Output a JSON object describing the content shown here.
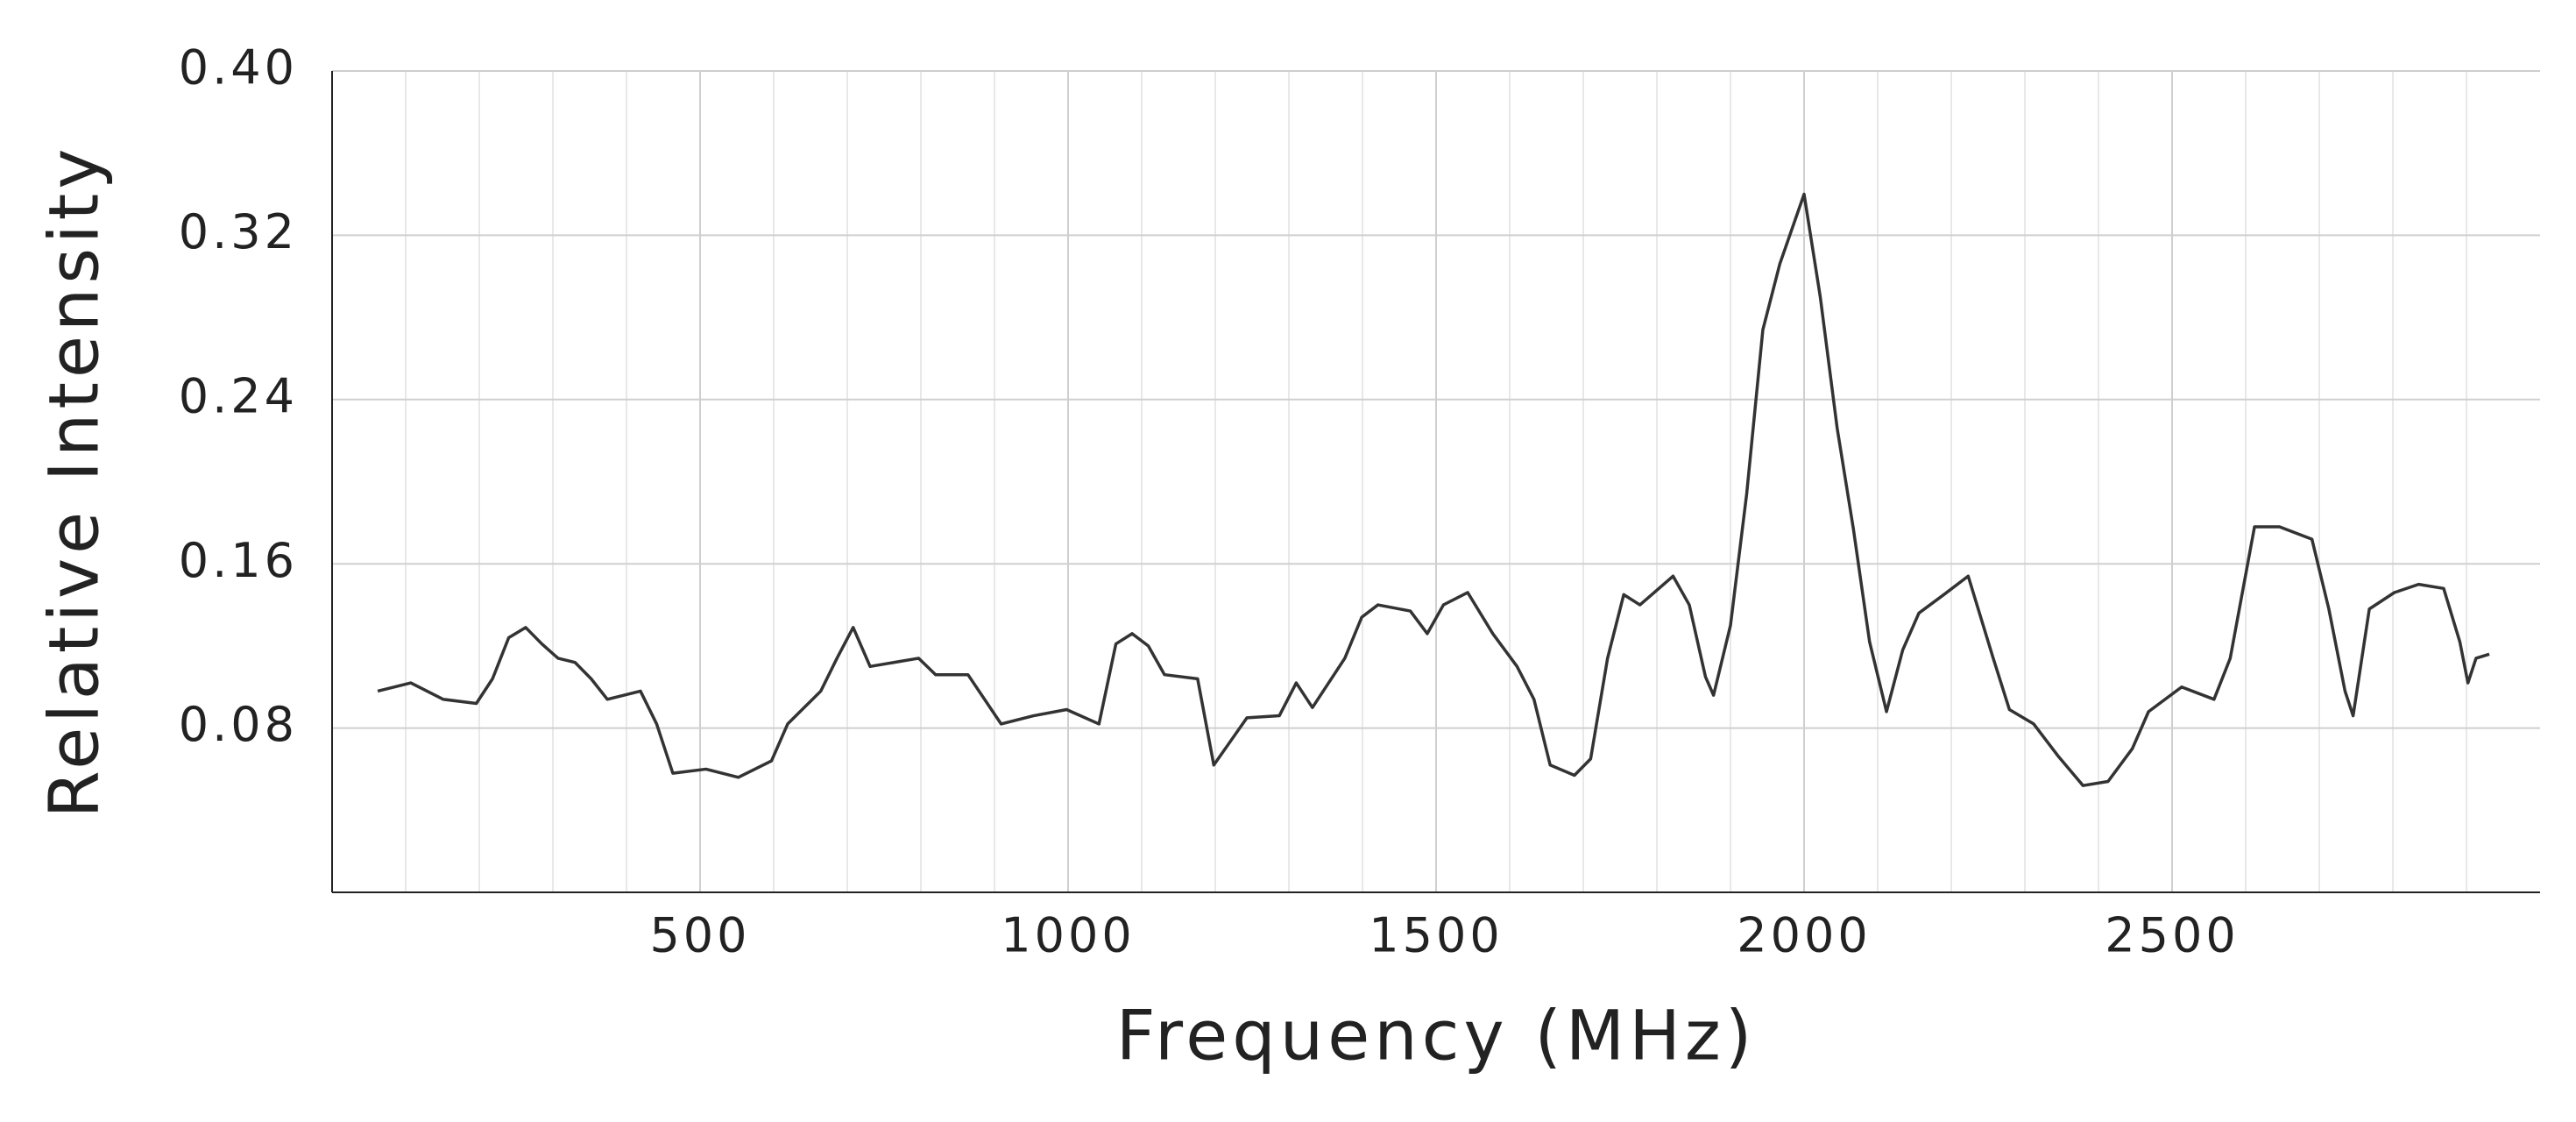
{
  "chart_data": {
    "type": "line",
    "x_label": "Frequency (MHz)",
    "y_label": "Relative Intensity",
    "x": [
      62,
      107,
      151,
      196,
      218,
      240,
      263,
      285,
      307,
      330,
      352,
      374,
      419,
      441,
      463,
      508,
      552,
      597,
      619,
      664,
      686,
      708,
      731,
      797,
      820,
      864,
      909,
      953,
      998,
      1042,
      1065,
      1087,
      1109,
      1131,
      1176,
      1198,
      1243,
      1287,
      1310,
      1332,
      1354,
      1376,
      1399,
      1421,
      1465,
      1488,
      1510,
      1543,
      1577,
      1610,
      1633,
      1655,
      1688,
      1710,
      1733,
      1755,
      1777,
      1822,
      1844,
      1866,
      1877,
      1900,
      1922,
      1944,
      1967,
      2000,
      2022,
      2045,
      2067,
      2089,
      2112,
      2134,
      2156,
      2190,
      2223,
      2257,
      2279,
      2312,
      2346,
      2379,
      2413,
      2446,
      2468,
      2513,
      2557,
      2579,
      2612,
      2646,
      2690,
      2713,
      2735,
      2746,
      2768,
      2802,
      2835,
      2869,
      2891,
      2902,
      2913,
      2931
    ],
    "series": [
      {
        "color": "#333333",
        "values": [
          0.098,
          0.102,
          0.094,
          0.092,
          0.104,
          0.124,
          0.129,
          0.121,
          0.114,
          0.112,
          0.104,
          0.094,
          0.098,
          0.082,
          0.058,
          0.06,
          0.056,
          0.064,
          0.082,
          0.098,
          0.114,
          0.129,
          0.11,
          0.114,
          0.106,
          0.106,
          0.082,
          0.086,
          0.089,
          0.082,
          0.121,
          0.126,
          0.12,
          0.106,
          0.104,
          0.062,
          0.085,
          0.086,
          0.102,
          0.09,
          0.102,
          0.114,
          0.134,
          0.14,
          0.137,
          0.126,
          0.14,
          0.146,
          0.126,
          0.11,
          0.094,
          0.062,
          0.057,
          0.065,
          0.114,
          0.145,
          0.14,
          0.154,
          0.14,
          0.105,
          0.096,
          0.13,
          0.194,
          0.274,
          0.306,
          0.34,
          0.29,
          0.226,
          0.177,
          0.122,
          0.088,
          0.118,
          0.136,
          0.145,
          0.154,
          0.114,
          0.089,
          0.082,
          0.066,
          0.052,
          0.054,
          0.07,
          0.088,
          0.1,
          0.094,
          0.114,
          0.178,
          0.178,
          0.172,
          0.138,
          0.098,
          0.086,
          0.138,
          0.146,
          0.15,
          0.148,
          0.122,
          0.102,
          0.114,
          0.116
        ]
      }
    ],
    "xlim": [
      0,
      3000
    ],
    "xticks": [
      500,
      1000,
      1500,
      2000,
      2500
    ],
    "x_minor_step": 100,
    "ylim": [
      0,
      0.4
    ],
    "yticks": [
      0.08,
      0.16,
      0.24,
      0.32,
      {
        "value": 0.4,
        "label": "0.40"
      }
    ],
    "grid": true
  }
}
